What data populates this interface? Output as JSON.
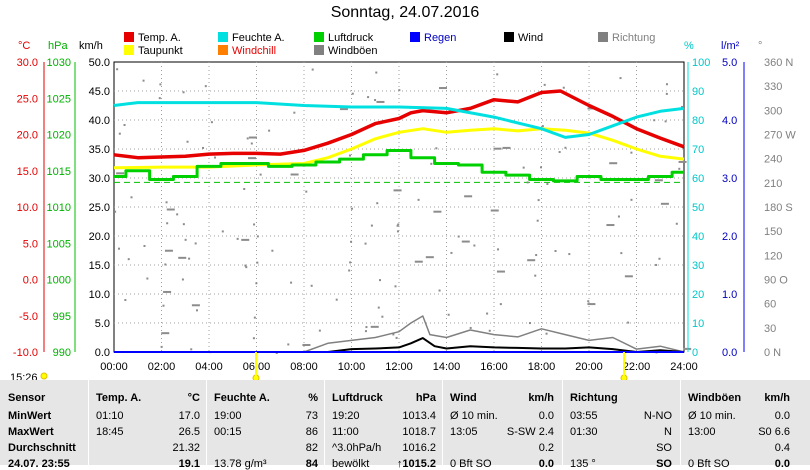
{
  "title": "Sonntag, 24.07.2016",
  "time_now": "15:26",
  "legend": [
    {
      "label": "Temp. A.",
      "color": "#e60000"
    },
    {
      "label": "Feuchte A.",
      "color": "#00e0e0"
    },
    {
      "label": "Luftdruck",
      "color": "#00d000"
    },
    {
      "label": "Regen",
      "color": "#0000ff",
      "text_color": "#0000c0"
    },
    {
      "label": "Wind",
      "color": "#000000"
    },
    {
      "label": "Richtung",
      "color": "#808080",
      "text_color": "#808080"
    },
    {
      "label": "Taupunkt",
      "color": "#ffff00"
    },
    {
      "label": "Windchill",
      "color": "#ff8000",
      "text_color": "#e60000"
    },
    {
      "label": "Windböen",
      "color": "#808080"
    }
  ],
  "axes": {
    "temp": {
      "unit": "°C",
      "color": "#e60000",
      "ticks": [
        "30.0",
        "25.0",
        "20.0",
        "15.0",
        "10.0",
        "5.0",
        "0.0",
        "-5.0",
        "-10.0"
      ]
    },
    "press": {
      "unit": "hPa",
      "color": "#00b000",
      "ticks": [
        "1030",
        "1025",
        "1020",
        "1015",
        "1010",
        "1005",
        "1000",
        "995",
        "990"
      ]
    },
    "wind": {
      "unit": "km/h",
      "color": "#000000",
      "ticks": [
        "50.0",
        "45.0",
        "40.0",
        "35.0",
        "30.0",
        "25.0",
        "20.0",
        "15.0",
        "10.0",
        "5.0",
        "0.0"
      ]
    },
    "hum": {
      "unit": "%",
      "color": "#00c8c8",
      "ticks": [
        "100",
        "90",
        "80",
        "70",
        "60",
        "50",
        "40",
        "30",
        "20",
        "10",
        "0"
      ]
    },
    "rain": {
      "unit": "l/m²",
      "color": "#0000c0",
      "ticks": [
        "5.0",
        "4.0",
        "3.0",
        "2.0",
        "1.0",
        "0.0"
      ]
    },
    "dir": {
      "unit": "°",
      "color": "#808080",
      "ticks": [
        "360 N",
        "330",
        "300",
        "270 W",
        "240",
        "210",
        "180 S",
        "150",
        "120",
        "90 O",
        "60",
        "30",
        "0 N"
      ]
    },
    "x": {
      "ticks": [
        "00:00",
        "02:00",
        "04:00",
        "06:00",
        "08:00",
        "10:00",
        "12:00",
        "14:00",
        "16:00",
        "18:00",
        "20:00",
        "22:00",
        "24:00"
      ]
    }
  },
  "chart_data": {
    "type": "line",
    "title": "Sonntag, 24.07.2016",
    "x_unit": "hours",
    "xlim": [
      0,
      24
    ],
    "series": [
      {
        "name": "Temp. A.",
        "axis": "°C",
        "ylim": [
          -10,
          30
        ],
        "x": [
          0,
          1,
          2,
          3,
          4,
          5,
          6,
          7,
          8,
          9,
          10,
          11,
          12,
          12.5,
          13,
          14,
          15,
          16,
          17,
          18,
          18.8,
          20,
          21,
          22,
          23,
          24
        ],
        "values": [
          17.2,
          16.8,
          16.9,
          17.0,
          17.3,
          17.4,
          17.4,
          17.3,
          17.8,
          18.8,
          20.0,
          21.5,
          22.2,
          23.0,
          23.3,
          23.0,
          23.6,
          24.8,
          24.5,
          25.8,
          26.0,
          24.0,
          22.5,
          20.8,
          19.5,
          18.3
        ]
      },
      {
        "name": "Taupunkt",
        "axis": "°C",
        "ylim": [
          -10,
          30
        ],
        "x": [
          0,
          2,
          4,
          6,
          8,
          9,
          10,
          11,
          12,
          13,
          14,
          15,
          16,
          17,
          18,
          19,
          20,
          21,
          22,
          23,
          24
        ],
        "values": [
          15.4,
          15.5,
          15.5,
          15.8,
          16.0,
          16.8,
          18.0,
          19.4,
          20.3,
          20.8,
          20.3,
          20.6,
          20.8,
          20.5,
          20.8,
          20.6,
          20.2,
          19.2,
          18.0,
          17.0,
          16.6
        ]
      },
      {
        "name": "Feuchte A.",
        "axis": "%",
        "ylim": [
          0,
          100
        ],
        "x": [
          0,
          1,
          6,
          8,
          10,
          12,
          14,
          16,
          18,
          19,
          20,
          21,
          22,
          23,
          24
        ],
        "values": [
          85,
          86,
          86,
          85,
          84.5,
          84.5,
          84,
          81,
          77,
          74,
          75,
          78,
          81,
          83,
          84
        ]
      },
      {
        "name": "Luftdruck",
        "axis": "hPa",
        "ylim": [
          990,
          1030
        ],
        "x": [
          0,
          1,
          2,
          3,
          4,
          5,
          6,
          7,
          8,
          9,
          10,
          11,
          12,
          13,
          14,
          15,
          16,
          17,
          18,
          19,
          20,
          21,
          22,
          23,
          24
        ],
        "values": [
          1014.2,
          1015.0,
          1013.8,
          1014.2,
          1015.6,
          1016.0,
          1016.0,
          1015.6,
          1015.8,
          1016.2,
          1016.6,
          1017.2,
          1017.8,
          1016.8,
          1016.0,
          1015.8,
          1014.8,
          1014.4,
          1013.8,
          1013.6,
          1014.2,
          1013.8,
          1013.8,
          1014.2,
          1014.8
        ]
      },
      {
        "name": "Windböen",
        "axis": "km/h",
        "ylim": [
          0,
          50
        ],
        "x": [
          0,
          8,
          9,
          10,
          11,
          12,
          12.5,
          13,
          13.3,
          14,
          15,
          16,
          17,
          18,
          19,
          20,
          21,
          22,
          23,
          24
        ],
        "values": [
          0,
          0,
          1.5,
          2.0,
          2.5,
          3.5,
          5.0,
          6.2,
          3.0,
          2.5,
          3.8,
          3.0,
          2.6,
          4.0,
          3.0,
          2.0,
          2.5,
          0.5,
          1.0,
          0
        ]
      },
      {
        "name": "Wind",
        "axis": "km/h",
        "ylim": [
          0,
          50
        ],
        "x": [
          0,
          9,
          10,
          11,
          12,
          12.5,
          13,
          13.5,
          14,
          15,
          16,
          17,
          18,
          19,
          20,
          21,
          22,
          23,
          24
        ],
        "values": [
          0,
          0,
          0.5,
          0.6,
          0.8,
          1.5,
          2.4,
          1.0,
          0.6,
          1.0,
          0.8,
          0.7,
          0.6,
          0.6,
          0.8,
          0.5,
          0,
          0.3,
          0
        ]
      },
      {
        "name": "Regen",
        "axis": "l/m²",
        "ylim": [
          0,
          5
        ],
        "x": [
          0,
          24
        ],
        "values": [
          0,
          0
        ]
      }
    ]
  },
  "stats": {
    "headers": {
      "sensor": "Sensor",
      "temp": "Temp. A.",
      "temp_unit": "°C",
      "hum": "Feuchte A.",
      "hum_unit": "%",
      "press": "Luftdruck",
      "press_unit": "hPa",
      "wind": "Wind",
      "wind_unit": "km/h",
      "dir": "Richtung",
      "gust": "Windböen",
      "gust_unit": "km/h"
    },
    "rows": [
      {
        "label": "MinWert",
        "temp_time": "01:10",
        "temp_val": "17.0",
        "hum_time": "19:00",
        "hum_val": "73",
        "press_time": "19:20",
        "press_val": "1013.4",
        "wind_time": "Ø 10 min.",
        "wind_val": "0.0",
        "dir_time": "03:55",
        "dir_val": "N-NO",
        "gust_time": "Ø 10 min.",
        "gust_val": "0.0"
      },
      {
        "label": "MaxWert",
        "temp_time": "18:45",
        "temp_val": "26.5",
        "hum_time": "00:15",
        "hum_val": "86",
        "press_time": "11:00",
        "press_val": "1018.7",
        "wind_time": "13:05",
        "wind_val": "S-SW 2.4",
        "dir_time": "01:30",
        "dir_val": "N",
        "gust_time": "13:00",
        "gust_val": "S0 6.6"
      },
      {
        "label": "Durchschnitt",
        "temp_time": "",
        "temp_val": "21.32",
        "hum_time": "",
        "hum_val": "82",
        "press_time": "^3.0hPa/h",
        "press_val": "1016.2",
        "wind_time": "",
        "wind_val": "0.2",
        "dir_time": "",
        "dir_val": "SO",
        "gust_time": "",
        "gust_val": "0.4"
      },
      {
        "label": "24.07. 23:55",
        "temp_time": "",
        "temp_val": "19.1",
        "hum_time": "13.78 g/m³",
        "hum_val": "84",
        "press_time": "bewölkt",
        "press_val": "↑1015.2",
        "wind_time": "0 Bft SO",
        "wind_val": "0.0",
        "dir_time": "135 °",
        "dir_val": "SO",
        "gust_time": "0 Bft SO",
        "gust_val": "0.0"
      }
    ]
  }
}
